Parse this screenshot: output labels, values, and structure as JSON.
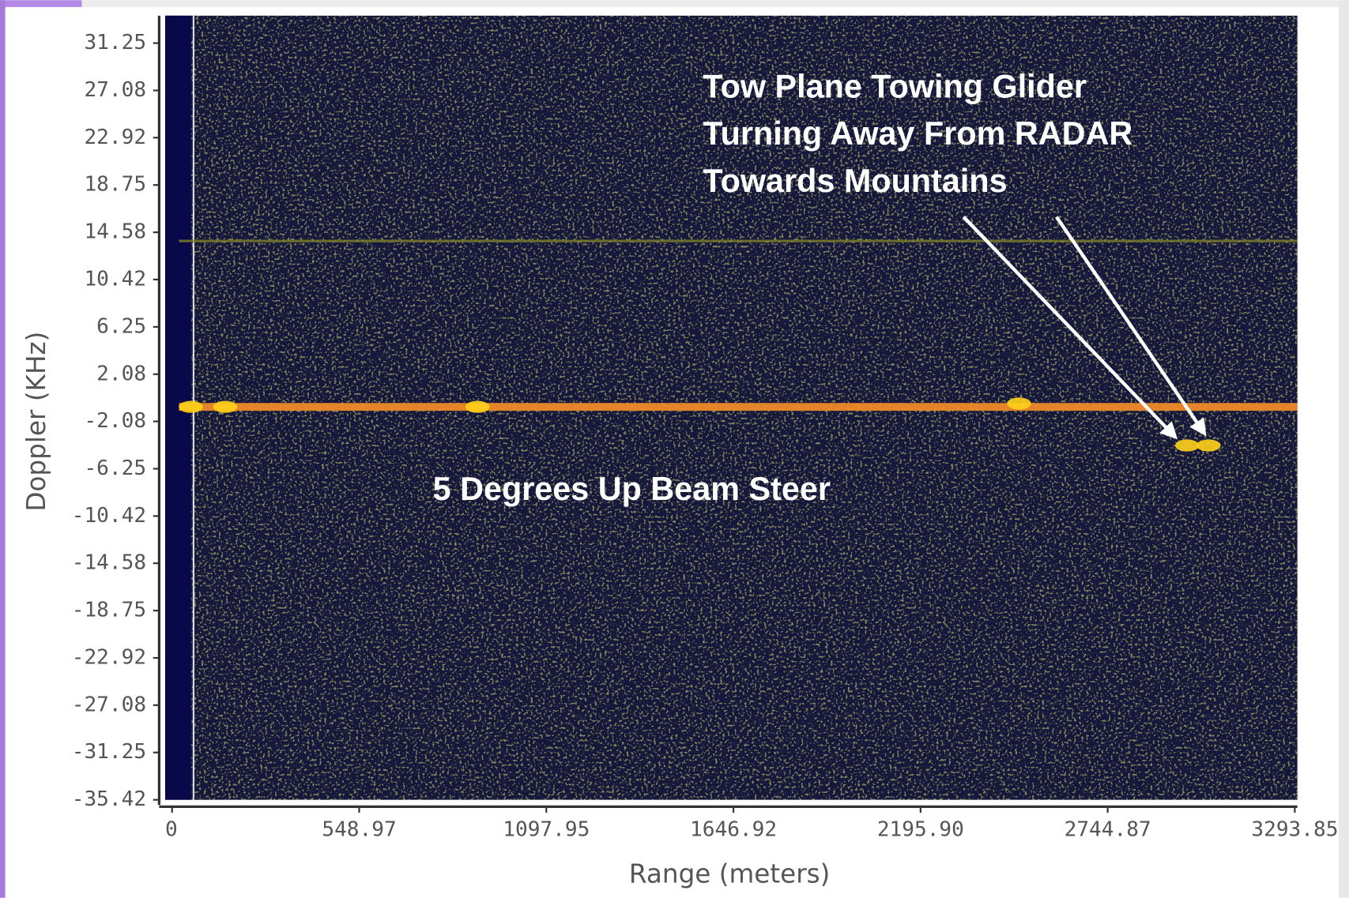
{
  "chart_data": {
    "type": "scatter",
    "x_label": "Range (meters)",
    "y_label": "Doppler (KHz)",
    "xlim": [
      0,
      3293.85
    ],
    "ylim": [
      -35.42,
      33.67
    ],
    "xticks": [
      0,
      548.97,
      1097.95,
      1646.92,
      {
        "value": 2195.9,
        "label": "2195.90"
      },
      2744.87,
      3293.85
    ],
    "yticks": [
      31.25,
      27.08,
      22.92,
      18.75,
      14.58,
      10.42,
      6.25,
      2.08,
      -2.08,
      -6.25,
      -10.42,
      -14.58,
      -18.75,
      -22.92,
      -27.08,
      -31.25,
      -35.42
    ],
    "hlines": [
      {
        "value": -0.8,
        "color": "#f08a2a"
      },
      {
        "value": 13.82,
        "color": "#7f7f2a"
      }
    ],
    "x": [
      55,
      156,
      896,
      2485,
      2978,
      3041
    ],
    "series": [
      {
        "color": "#ffd21a",
        "values": [
          -0.8,
          -0.8,
          -0.8,
          -0.5,
          -4.2,
          -4.2
        ]
      }
    ],
    "annotations": [
      {
        "lines": [
          "Tow Plane Towing Glider",
          "Turning Away From RADAR",
          "Towards Mountains"
        ]
      },
      {
        "lines": [
          "5 Degrees Up Beam Steer"
        ]
      }
    ]
  }
}
